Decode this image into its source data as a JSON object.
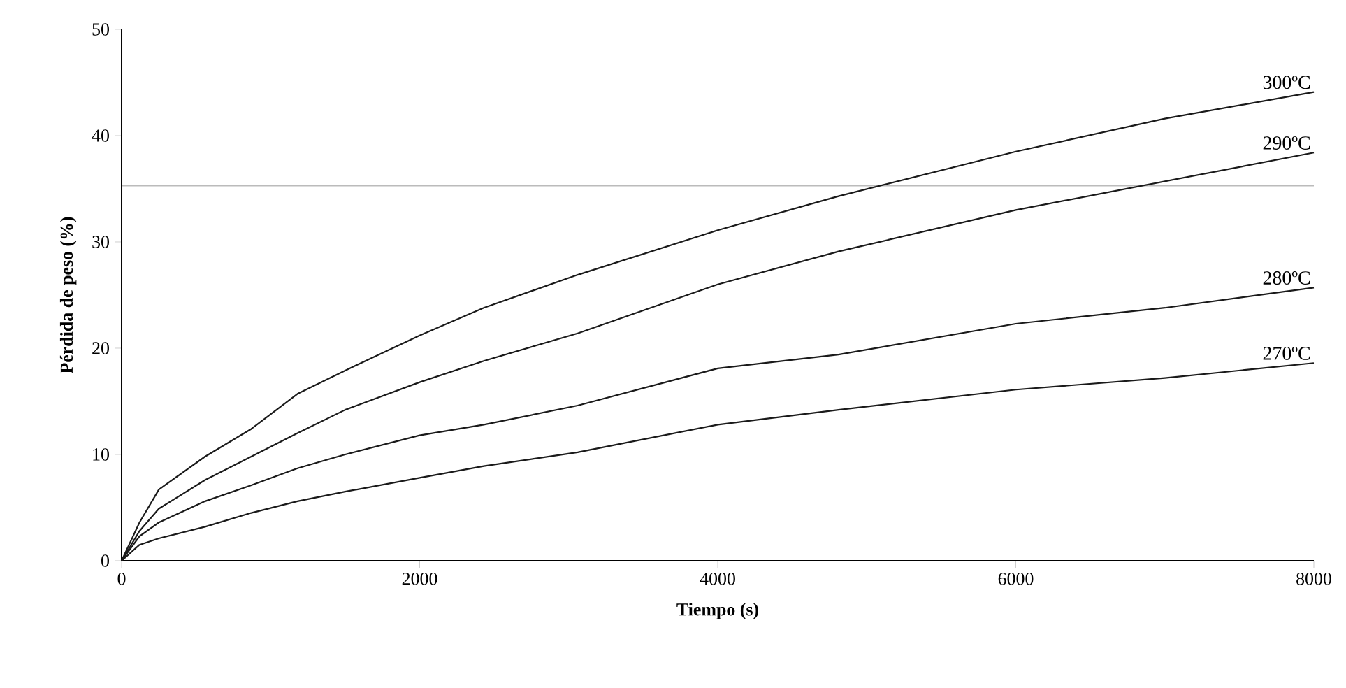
{
  "chart_data": {
    "type": "line",
    "xlabel": "Tiempo (s)",
    "ylabel": "Pérdida de peso (%)",
    "x": [
      0,
      120,
      250,
      560,
      870,
      1180,
      1500,
      2000,
      2430,
      3060,
      4000,
      4810,
      6000,
      7000,
      8000
    ],
    "series": [
      {
        "name": "300ºC",
        "color": "#1a1a1a",
        "values": [
          0,
          3.6,
          6.7,
          9.8,
          12.4,
          15.7,
          17.9,
          21.2,
          23.8,
          26.9,
          31.1,
          34.3,
          38.5,
          41.6,
          44.1
        ]
      },
      {
        "name": "290ºC",
        "color": "#1a1a1a",
        "values": [
          0,
          2.8,
          4.9,
          7.6,
          9.8,
          12.0,
          14.2,
          16.8,
          18.8,
          21.4,
          26.0,
          29.1,
          33.0,
          35.7,
          38.4
        ]
      },
      {
        "name": "280ºC",
        "color": "#1a1a1a",
        "values": [
          0,
          2.3,
          3.6,
          5.6,
          7.1,
          8.7,
          10.0,
          11.8,
          12.8,
          14.6,
          18.1,
          19.4,
          22.3,
          23.8,
          25.7
        ]
      },
      {
        "name": "270ºC",
        "color": "#1a1a1a",
        "values": [
          0,
          1.5,
          2.1,
          3.2,
          4.5,
          5.6,
          6.5,
          7.8,
          8.9,
          10.2,
          12.8,
          14.2,
          16.1,
          17.2,
          18.6
        ]
      }
    ],
    "xlim": [
      0,
      8000
    ],
    "xticks": [
      0,
      2000,
      4000,
      6000,
      8000
    ],
    "ylim": [
      0,
      50
    ],
    "yticks": [
      0,
      10,
      20,
      30,
      40,
      50
    ],
    "ref_lines": [
      {
        "axis": "y",
        "value": 35.3,
        "color": "#bbbbbb"
      }
    ],
    "grid": false,
    "legend": false,
    "marker": "none",
    "line_style": "solid"
  }
}
